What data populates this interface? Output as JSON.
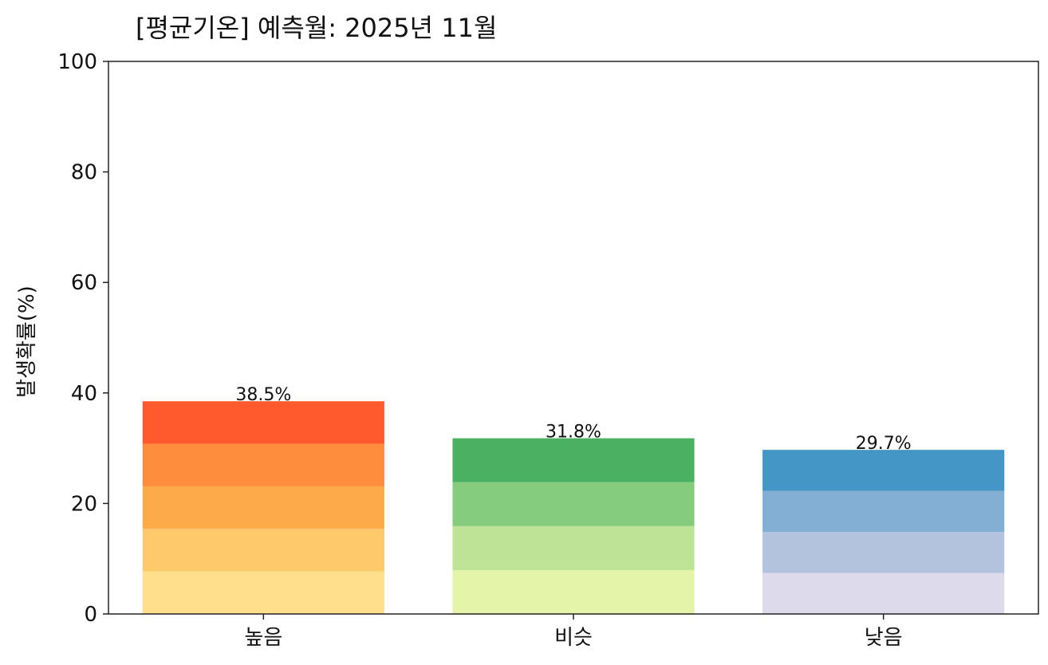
{
  "chart_data": {
    "type": "bar",
    "stacked_segments": true,
    "title": "[평균기온] 예측월: 2025년 11월",
    "xlabel": "",
    "ylabel": "발생확률(%)",
    "ylim": [
      0,
      100
    ],
    "yticks": [
      0,
      20,
      40,
      60,
      80,
      100
    ],
    "ytick_labels": [
      "0",
      "20",
      "40",
      "60",
      "80",
      "100"
    ],
    "grid": false,
    "categories": [
      "높음",
      "비슷",
      "낮음"
    ],
    "values": [
      38.5,
      31.8,
      29.7
    ],
    "value_labels": [
      "38.5%",
      "31.8%",
      "29.7%"
    ],
    "segment_colors": [
      [
        "#ffdf8a",
        "#fdc96a",
        "#fdaa48",
        "#fd8c3c",
        "#ff5a2e"
      ],
      [
        "#e3f4a8",
        "#bde396",
        "#85cc7c",
        "#4cb063"
      ],
      [
        "#dcdaeb",
        "#b3c3de",
        "#82aed3",
        "#4295c4"
      ]
    ]
  }
}
